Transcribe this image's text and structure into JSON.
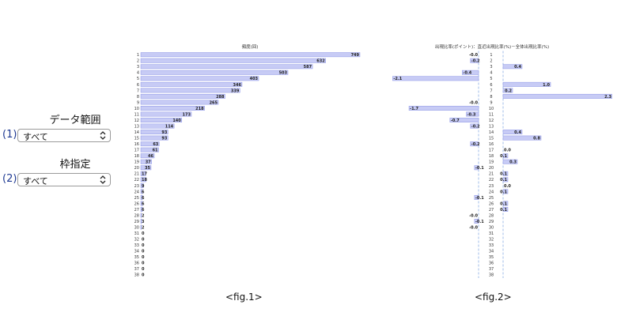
{
  "filters": {
    "data_range": {
      "title": "データ範囲",
      "number": "(1)",
      "value": "すべて"
    },
    "frame": {
      "title": "枠指定",
      "number": "(2)",
      "value": "すべて"
    }
  },
  "captions": {
    "fig1": "<fig.1>",
    "fig2": "<fig.2>"
  },
  "icons": {
    "select_arrow": "chevron-updown-icon"
  },
  "colors": {
    "bar_fill": "#c7cbf5",
    "bar_stroke": "#8e96e6",
    "dash_line": "#7aa3e0"
  },
  "chart_data": [
    {
      "type": "bar",
      "orientation": "horizontal",
      "title": "頻度(回)",
      "categories": [
        "1",
        "2",
        "3",
        "4",
        "5",
        "6",
        "7",
        "8",
        "9",
        "10",
        "11",
        "12",
        "13",
        "14",
        "15",
        "16",
        "17",
        "18",
        "19",
        "20",
        "21",
        "22",
        "23",
        "24",
        "25",
        "26",
        "27",
        "28",
        "29",
        "30",
        "31",
        "32",
        "33",
        "34",
        "35",
        "36",
        "37",
        "38"
      ],
      "values": [
        749,
        632,
        587,
        503,
        403,
        346,
        339,
        288,
        265,
        218,
        173,
        140,
        114,
        93,
        93,
        63,
        61,
        46,
        37,
        35,
        17,
        18,
        9,
        6,
        6,
        6,
        6,
        2,
        3,
        2,
        0,
        0,
        0,
        0,
        0,
        0,
        0,
        0
      ],
      "xlim": [
        0,
        749
      ]
    },
    {
      "type": "bar",
      "orientation": "horizontal",
      "title": "出現比率(ポイント)：直近出現比率(%)－全体出現比率(%)",
      "categories": [
        "1",
        "2",
        "3",
        "4",
        "5",
        "6",
        "7",
        "8",
        "9",
        "10",
        "11",
        "12",
        "13",
        "14",
        "15",
        "16",
        "17",
        "18",
        "19",
        "20",
        "21",
        "22",
        "23",
        "24",
        "25",
        "26",
        "27",
        "28",
        "29",
        "30",
        "31",
        "32",
        "33",
        "34",
        "35",
        "36",
        "37",
        "38"
      ],
      "labels": [
        "-0.0",
        "-0.2",
        "0.4",
        "-0.4",
        "-2.1",
        "1.0",
        "0.2",
        "2.3",
        "-0.0",
        "-1.7",
        "-0.3",
        "-0.7",
        "-0.2",
        "0.4",
        "0.8",
        "-0.2",
        "0.0",
        "0.1",
        "0.3",
        "-0.1",
        "0.1",
        "0.1",
        "0.0",
        "0.1",
        "-0.1",
        "0.1",
        "0.1",
        "-0.0",
        "-0.1",
        "-0.0",
        "",
        "",
        "",
        "",
        "",
        "",
        "",
        ""
      ],
      "values": [
        0,
        -0.2,
        0.4,
        -0.4,
        -2.1,
        1.0,
        0.2,
        2.3,
        0,
        -1.7,
        -0.3,
        -0.7,
        -0.2,
        0.4,
        0.8,
        -0.2,
        0,
        0.1,
        0.3,
        -0.1,
        0.1,
        0.1,
        0,
        0.1,
        -0.1,
        0.1,
        0.1,
        0,
        -0.1,
        0,
        0,
        0,
        0,
        0,
        0,
        0,
        0,
        0
      ],
      "xlim": [
        -2.3,
        2.3
      ]
    }
  ]
}
